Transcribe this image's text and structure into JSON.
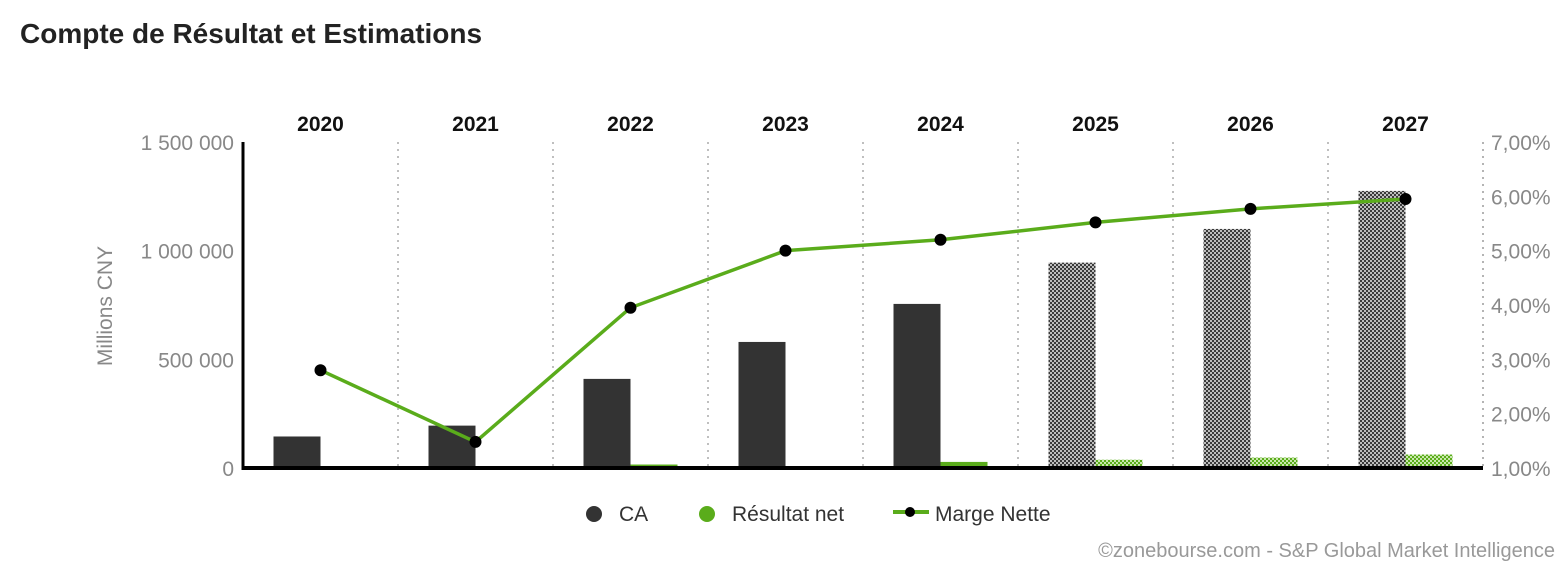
{
  "title": "Compte de Résultat et Estimations",
  "credit": "©zonebourse.com - S&P Global Market Intelligence",
  "colors": {
    "ca": "#333333",
    "resultat": "#5aac1b",
    "marge": "#5aac1b",
    "marker": "#000000",
    "axis": "#000000",
    "tick_text": "#888888",
    "grid": "#aaaaaa"
  },
  "chart_data": {
    "type": "bar",
    "categories": [
      "2020",
      "2021",
      "2022",
      "2023",
      "2024",
      "2025",
      "2026",
      "2027"
    ],
    "estimate_from_index": 5,
    "ylabel": "Millions CNY",
    "ylim": [
      0,
      1500000
    ],
    "yticks": [
      0,
      500000,
      1000000,
      1500000
    ],
    "ytick_labels": [
      "0",
      "500 000",
      "1 000 000",
      "1 500 000"
    ],
    "y2lim": [
      1,
      7
    ],
    "y2ticks": [
      1,
      2,
      3,
      4,
      5,
      6,
      7
    ],
    "y2tick_labels": [
      "1,00%",
      "2,00%",
      "3,00%",
      "4,00%",
      "5,00%",
      "6,00%",
      "7,00%"
    ],
    "series": [
      {
        "name": "CA",
        "type": "bar",
        "axis": "left",
        "values": [
          145000,
          195000,
          410000,
          580000,
          755000,
          945000,
          1100000,
          1275000
        ]
      },
      {
        "name": "Résultat net",
        "type": "bar",
        "axis": "left",
        "values": [
          4000,
          2800,
          16000,
          5000,
          28000,
          38000,
          48000,
          62000
        ]
      },
      {
        "name": "Marge Nette",
        "type": "line",
        "axis": "right",
        "values": [
          2.8,
          1.48,
          3.95,
          5.0,
          5.2,
          5.52,
          5.77,
          5.95
        ]
      }
    ],
    "legend": {
      "position": "bottom-center",
      "items": [
        "CA",
        "Résultat net",
        "Marge Nette"
      ]
    },
    "grid": {
      "vertical_dotted": true,
      "horizontal": false
    }
  }
}
